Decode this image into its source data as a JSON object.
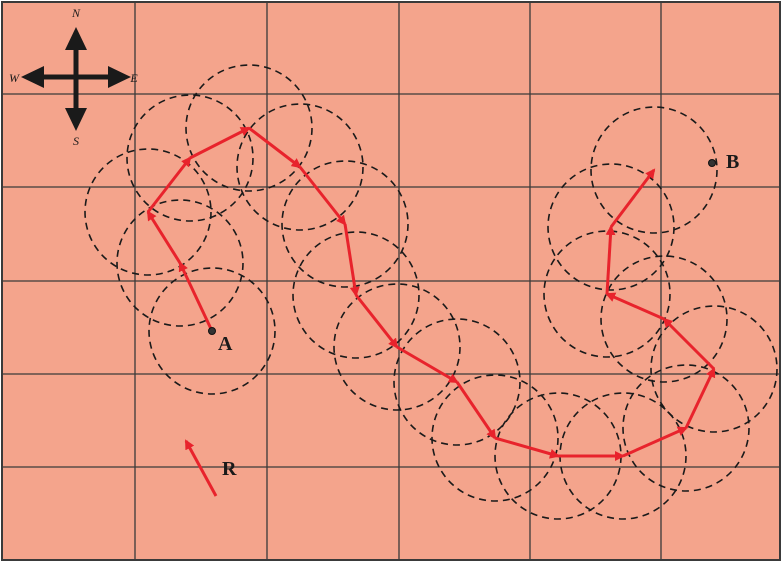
{
  "colors": {
    "background": "#F4A48C",
    "grid": "#3a3a3a",
    "path": "#E8232C",
    "circle": "#1a1a1a",
    "compass": "#1a1a1a",
    "label": "#1a1a1a"
  },
  "compass": {
    "north": "N",
    "south": "S",
    "east": "E",
    "west": "W"
  },
  "labels": {
    "start": "A",
    "end": "B",
    "legend": "R"
  }
}
